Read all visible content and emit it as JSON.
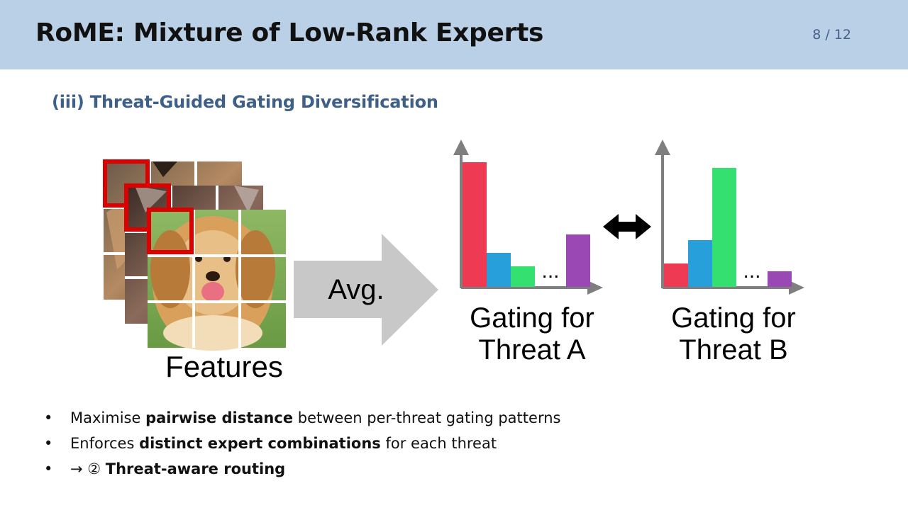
{
  "header": {
    "title": "RoME: Mixture of Low-Rank Experts",
    "page_number": "8 / 12"
  },
  "section": {
    "subtitle": "(iii) Threat-Guided Gating Diversification"
  },
  "diagram": {
    "features_label": "Features",
    "arrow_label": "Avg.",
    "ellipsis": "...",
    "gating_a": {
      "line1": "Gating for",
      "line2": "Threat A"
    },
    "gating_b": {
      "line1": "Gating for",
      "line2": "Threat B"
    },
    "colors": {
      "red": "#ee3a52",
      "blue": "#279fdb",
      "green": "#34e070",
      "purple": "#9a48b4",
      "axis": "#7f7f7f",
      "arrow_fill": "#c8c8c8",
      "patch_border": "#dd0000",
      "header_bg": "#bad0e6",
      "subtitle": "#3e5f88"
    }
  },
  "bullets": [
    {
      "bullet": "•",
      "pre": "Maximise ",
      "bold": "pairwise distance",
      "post": " between per-threat gating patterns"
    },
    {
      "bullet": "•",
      "pre": "Enforces ",
      "bold": "distinct expert combinations",
      "post": " for each threat"
    },
    {
      "bullet": "•",
      "pre": "→ ② ",
      "bold": "Threat-aware routing",
      "post": ""
    }
  ]
}
